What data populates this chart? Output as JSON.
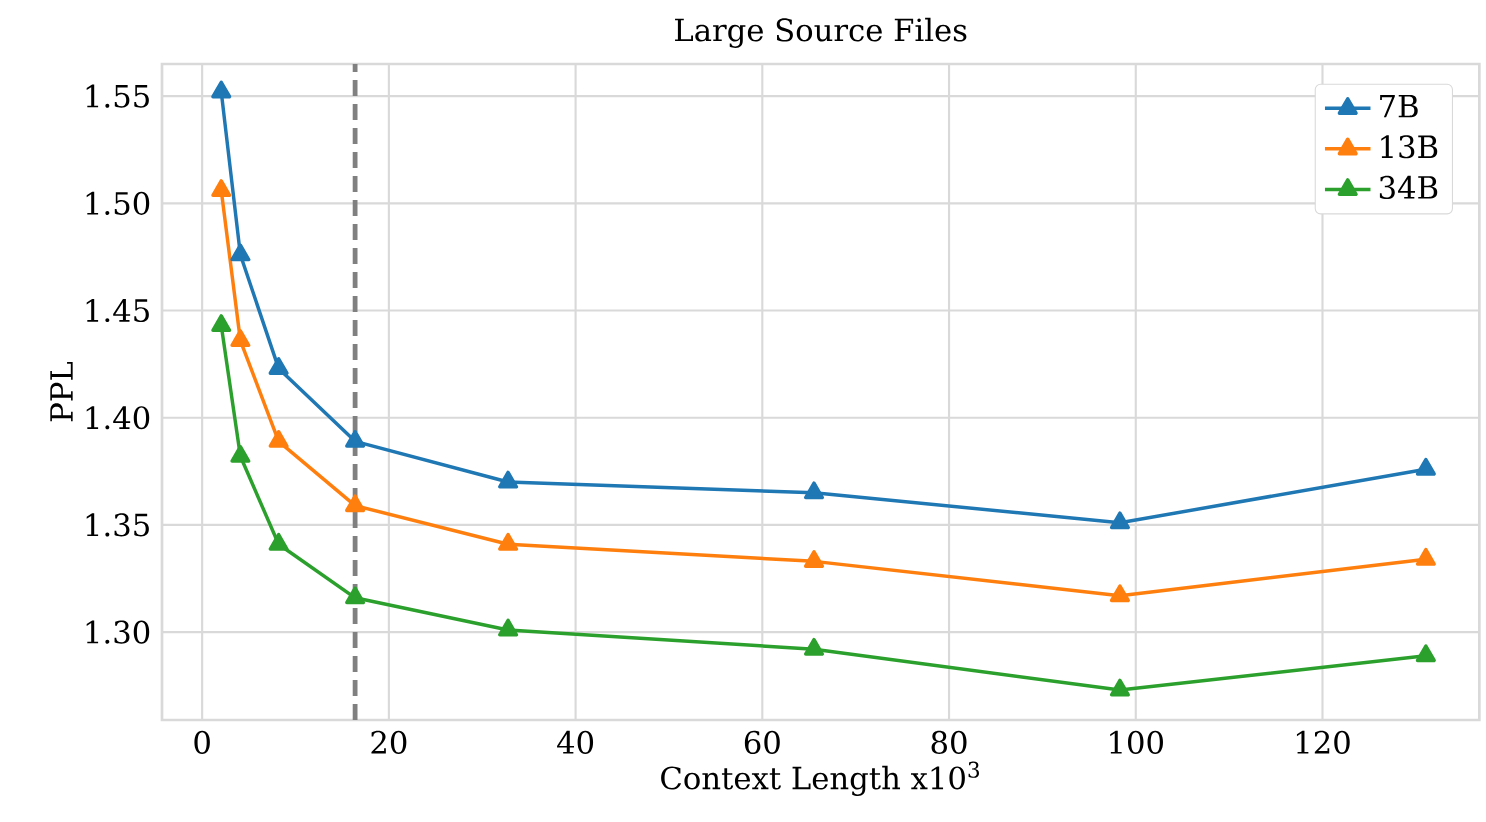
{
  "chart_data": {
    "type": "line",
    "title": "Large Source Files",
    "xlabel": "Context Length x10$^{3}$",
    "ylabel": "PPL",
    "x": [
      2.048,
      4.096,
      8.192,
      16.384,
      32.768,
      65.536,
      98.304,
      131.072
    ],
    "series": [
      {
        "name": "7B",
        "color": "#1f77b4",
        "values": [
          1.552,
          1.476,
          1.423,
          1.389,
          1.37,
          1.365,
          1.351,
          1.376
        ]
      },
      {
        "name": "13B",
        "color": "#ff7f0e",
        "values": [
          1.506,
          1.436,
          1.389,
          1.359,
          1.341,
          1.333,
          1.317,
          1.334
        ]
      },
      {
        "name": "34B",
        "color": "#2ca02c",
        "values": [
          1.443,
          1.382,
          1.341,
          1.316,
          1.301,
          1.292,
          1.273,
          1.289
        ]
      }
    ],
    "xlim": [
      -4.3,
      136.8
    ],
    "ylim": [
      1.259,
      1.565
    ],
    "xticks": [
      0,
      20,
      40,
      60,
      80,
      100,
      120
    ],
    "yticks": [
      {
        "value": 1.3,
        "label": "1.30"
      },
      1.35,
      {
        "value": 1.4,
        "label": "1.40"
      },
      1.45,
      {
        "value": 1.5,
        "label": "1.50"
      },
      1.55
    ],
    "ref_lines": [
      {
        "axis": "x",
        "value": 16.384,
        "color": "#808080",
        "line_style": "dashed"
      }
    ],
    "grid": true,
    "legend": "top right",
    "marker": "triangle",
    "line_style": "solid"
  }
}
